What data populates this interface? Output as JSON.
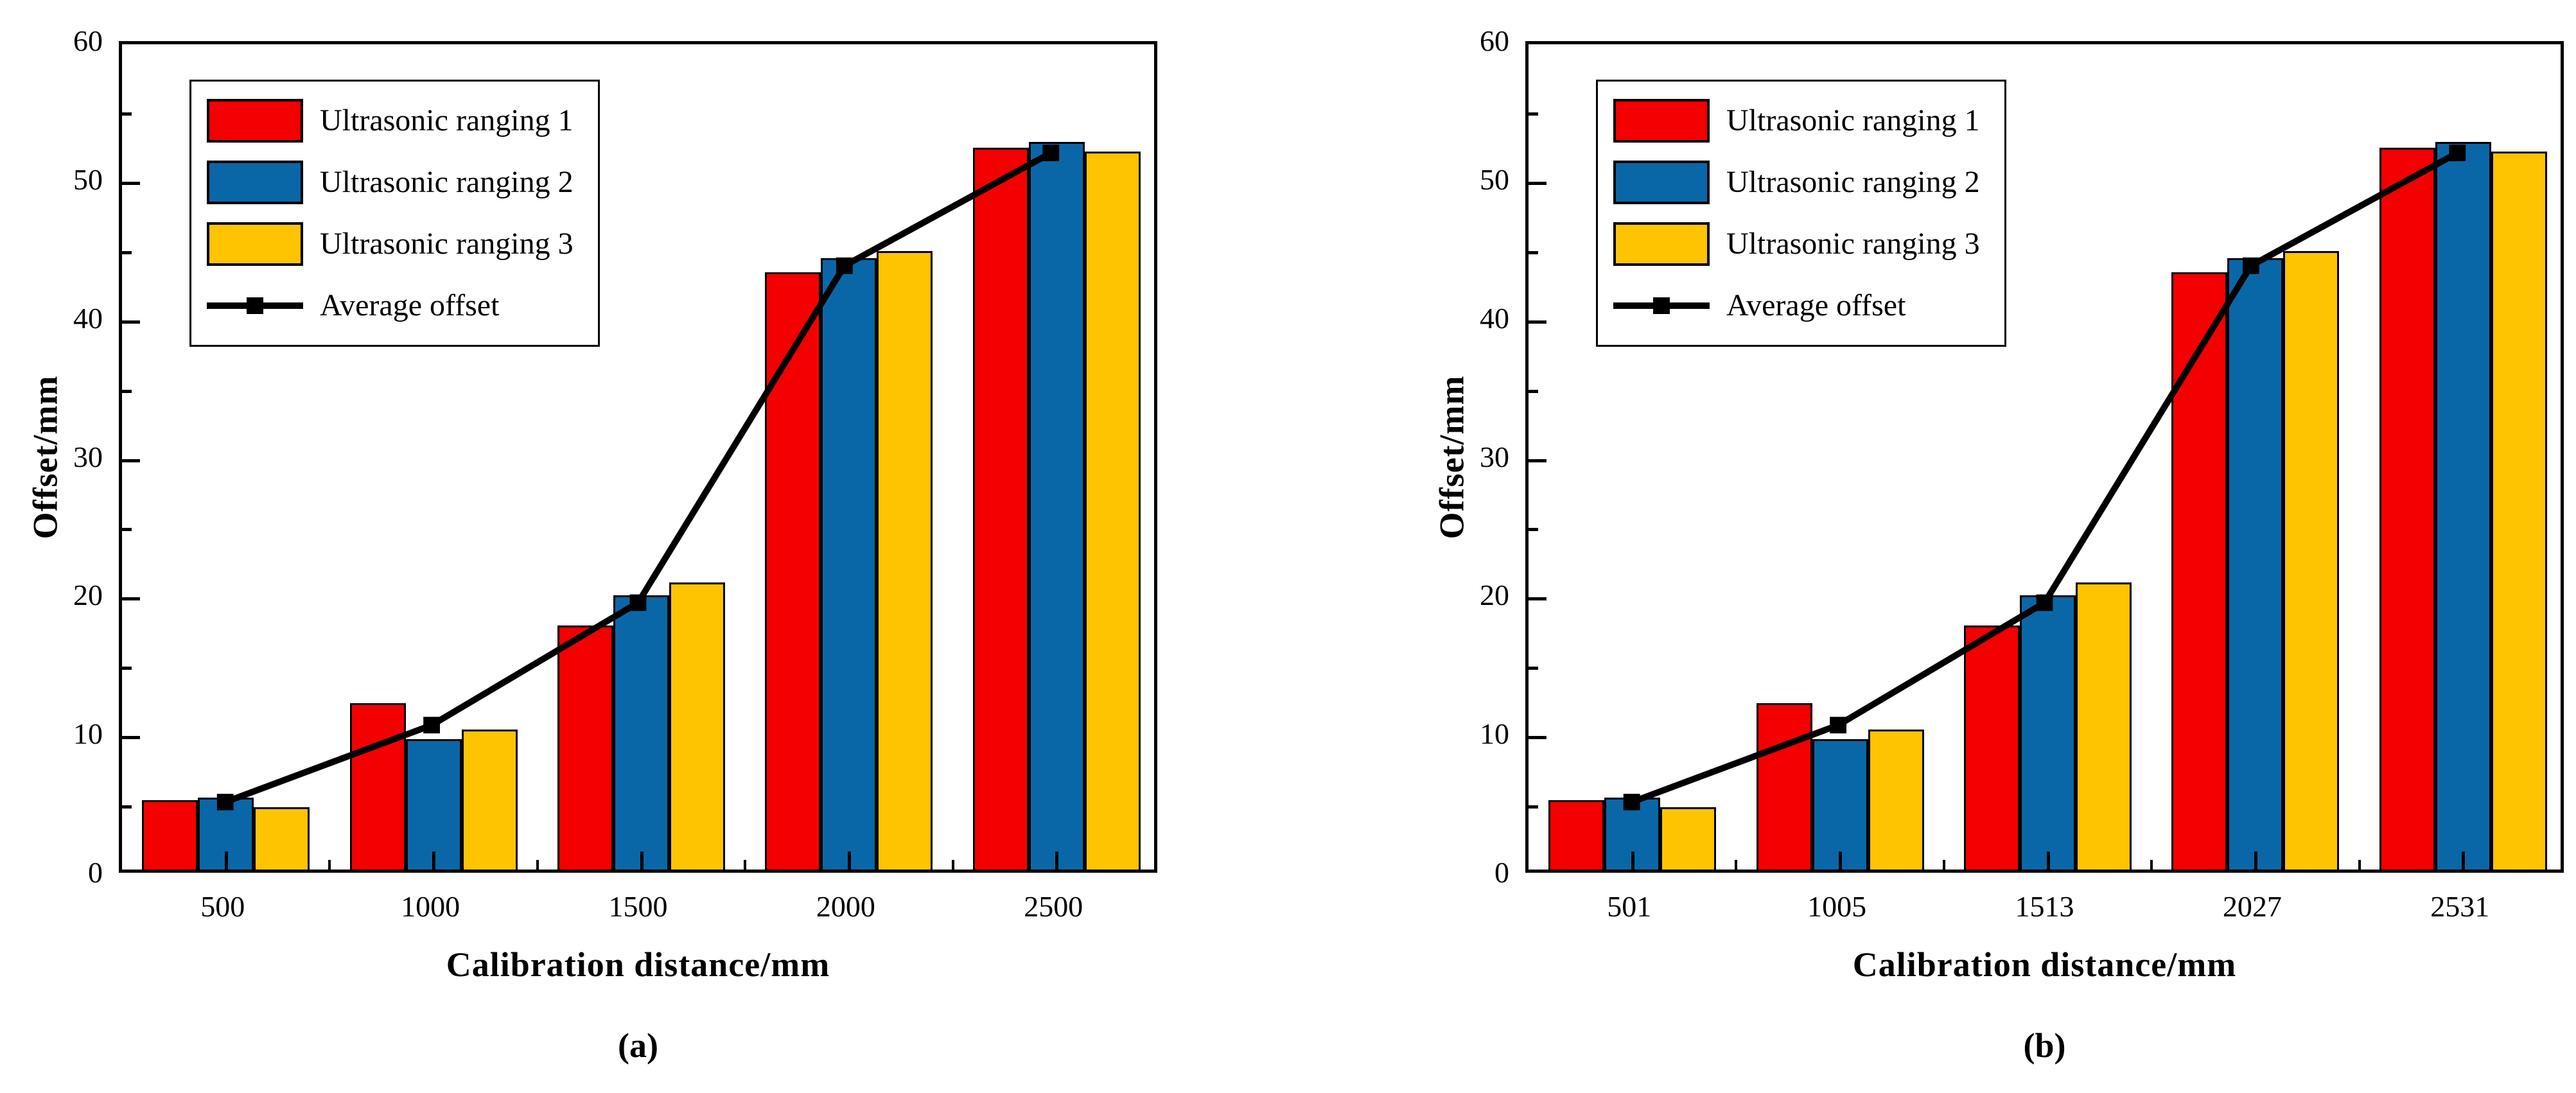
{
  "chart_data": [
    {
      "type": "bar",
      "caption": "(a)",
      "xlabel": "Calibration distance/mm",
      "ylabel": "Offset/mm",
      "ylim": [
        0,
        60
      ],
      "y_major_ticks": [
        0,
        10,
        20,
        30,
        40,
        50,
        60
      ],
      "y_minor_ticks": [
        5,
        15,
        25,
        35,
        45,
        55
      ],
      "grid": false,
      "legend_position": "top-left",
      "categories": [
        "500",
        "1000",
        "1500",
        "2000",
        "2500"
      ],
      "series": [
        {
          "name": "Ultrasonic ranging 1",
          "color": "#F50000",
          "values": [
            5.0,
            12.0,
            17.6,
            43.1,
            52.1
          ]
        },
        {
          "name": "Ultrasonic ranging 2",
          "color": "#0A67A7",
          "values": [
            5.2,
            9.4,
            19.8,
            44.1,
            52.5
          ]
        },
        {
          "name": "Ultrasonic ranging 3",
          "color": "#FEC402",
          "values": [
            4.5,
            10.1,
            20.7,
            44.6,
            51.8
          ]
        }
      ],
      "line_series": {
        "name": "Average offset",
        "color": "#000000",
        "values": [
          4.9,
          10.5,
          19.4,
          43.9,
          52.1
        ]
      }
    },
    {
      "type": "bar",
      "caption": "(b)",
      "xlabel": "Calibration distance/mm",
      "ylabel": "Offset/mm",
      "ylim": [
        0,
        60
      ],
      "y_major_ticks": [
        0,
        10,
        20,
        30,
        40,
        50,
        60
      ],
      "y_minor_ticks": [
        5,
        15,
        25,
        35,
        45,
        55
      ],
      "grid": false,
      "legend_position": "top-left",
      "categories": [
        "501",
        "1005",
        "1513",
        "2027",
        "2531"
      ],
      "series": [
        {
          "name": "Ultrasonic ranging 1",
          "color": "#F50000",
          "values": [
            5.0,
            12.0,
            17.6,
            43.1,
            52.1
          ]
        },
        {
          "name": "Ultrasonic ranging 2",
          "color": "#0A67A7",
          "values": [
            5.2,
            9.4,
            19.8,
            44.1,
            52.5
          ]
        },
        {
          "name": "Ultrasonic ranging 3",
          "color": "#FEC402",
          "values": [
            4.5,
            10.1,
            20.7,
            44.6,
            51.8
          ]
        }
      ],
      "line_series": {
        "name": "Average offset",
        "color": "#000000",
        "values": [
          4.9,
          10.5,
          19.4,
          43.9,
          52.1
        ]
      }
    }
  ]
}
